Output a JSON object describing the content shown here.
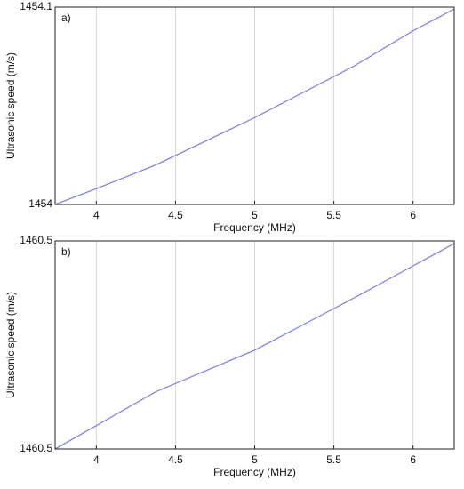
{
  "chart_data": [
    {
      "type": "line",
      "label": "a)",
      "xlabel": "Frequency (MHz)",
      "ylabel": "Ultrasonic speed (m/s)",
      "x": [
        3.74,
        4,
        4.375,
        5,
        5.625,
        6,
        6.26
      ],
      "series": [
        {
          "color": "#8585e6",
          "values": [
            1454,
            1454.008,
            1454.02,
            1454.044,
            1454.07,
            1454.088,
            1454.099
          ]
        }
      ],
      "xlim": [
        3.74,
        6.26
      ],
      "xticks": [
        4,
        4.5,
        5,
        5.5,
        6
      ],
      "ylim": [
        1454,
        1454.1
      ],
      "yticks": [
        1454,
        1454.1
      ],
      "grid": true
    },
    {
      "type": "line",
      "label": "b)",
      "xlabel": "Frequency (MHz)",
      "ylabel": "Ultrasonic speed (m/s)",
      "x": [
        3.74,
        4.375,
        5,
        5.625,
        6.26
      ],
      "series": [
        {
          "color": "#8585e6",
          "values": [
            1460.46,
            1460.482,
            1460.498,
            1460.518,
            1460.539
          ]
        }
      ],
      "xlim": [
        3.74,
        6.26
      ],
      "xticks": [
        4,
        4.5,
        5,
        5.5,
        6
      ],
      "ylim": [
        1460.46,
        1460.54
      ],
      "yticks": [
        {
          "value": 1460.46,
          "label": "1460.5"
        },
        {
          "value": 1460.54,
          "label": "1460.5"
        }
      ],
      "grid": true
    }
  ]
}
